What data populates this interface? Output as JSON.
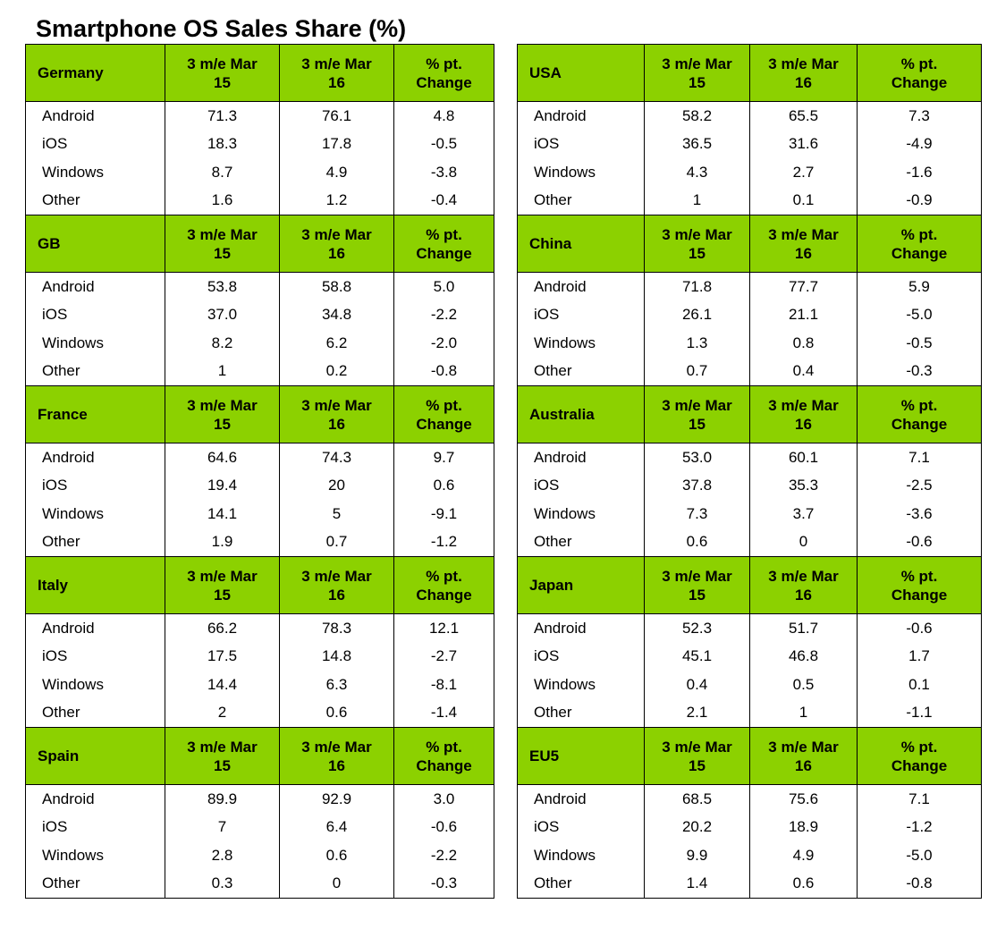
{
  "page": {
    "title": "Smartphone OS Sales Share (%)"
  },
  "chart_data": {
    "type": "table",
    "title": "Smartphone OS Sales Share (%)",
    "columns": [
      "3 m/e Mar 15",
      "3 m/e Mar 16",
      "% pt. Change"
    ],
    "header_lines": [
      [
        "3 m/e Mar",
        "15"
      ],
      [
        "3 m/e Mar",
        "16"
      ],
      [
        "% pt.",
        "Change"
      ]
    ],
    "left_column": [
      {
        "country": "Germany",
        "rows": [
          {
            "os": "Android",
            "values": [
              "71.3",
              "76.1",
              "4.8"
            ]
          },
          {
            "os": "iOS",
            "values": [
              "18.3",
              "17.8",
              "-0.5"
            ]
          },
          {
            "os": "Windows",
            "values": [
              "8.7",
              "4.9",
              "-3.8"
            ]
          },
          {
            "os": "Other",
            "values": [
              "1.6",
              "1.2",
              "-0.4"
            ]
          }
        ]
      },
      {
        "country": "GB",
        "rows": [
          {
            "os": "Android",
            "values": [
              "53.8",
              "58.8",
              "5.0"
            ]
          },
          {
            "os": "iOS",
            "values": [
              "37.0",
              "34.8",
              "-2.2"
            ]
          },
          {
            "os": "Windows",
            "values": [
              "8.2",
              "6.2",
              "-2.0"
            ]
          },
          {
            "os": "Other",
            "values": [
              "1",
              "0.2",
              "-0.8"
            ]
          }
        ]
      },
      {
        "country": "France",
        "rows": [
          {
            "os": "Android",
            "values": [
              "64.6",
              "74.3",
              "9.7"
            ]
          },
          {
            "os": "iOS",
            "values": [
              "19.4",
              "20",
              "0.6"
            ]
          },
          {
            "os": "Windows",
            "values": [
              "14.1",
              "5",
              "-9.1"
            ]
          },
          {
            "os": "Other",
            "values": [
              "1.9",
              "0.7",
              "-1.2"
            ]
          }
        ]
      },
      {
        "country": "Italy",
        "rows": [
          {
            "os": "Android",
            "values": [
              "66.2",
              "78.3",
              "12.1"
            ]
          },
          {
            "os": "iOS",
            "values": [
              "17.5",
              "14.8",
              "-2.7"
            ]
          },
          {
            "os": "Windows",
            "values": [
              "14.4",
              "6.3",
              "-8.1"
            ]
          },
          {
            "os": "Other",
            "values": [
              "2",
              "0.6",
              "-1.4"
            ]
          }
        ]
      },
      {
        "country": "Spain",
        "rows": [
          {
            "os": "Android",
            "values": [
              "89.9",
              "92.9",
              "3.0"
            ]
          },
          {
            "os": "iOS",
            "values": [
              "7",
              "6.4",
              "-0.6"
            ]
          },
          {
            "os": "Windows",
            "values": [
              "2.8",
              "0.6",
              "-2.2"
            ]
          },
          {
            "os": "Other",
            "values": [
              "0.3",
              "0",
              "-0.3"
            ]
          }
        ]
      }
    ],
    "right_column": [
      {
        "country": "USA",
        "rows": [
          {
            "os": "Android",
            "values": [
              "58.2",
              "65.5",
              "7.3"
            ]
          },
          {
            "os": "iOS",
            "values": [
              "36.5",
              "31.6",
              "-4.9"
            ]
          },
          {
            "os": "Windows",
            "values": [
              "4.3",
              "2.7",
              "-1.6"
            ]
          },
          {
            "os": "Other",
            "values": [
              "1",
              "0.1",
              "-0.9"
            ]
          }
        ]
      },
      {
        "country": "China",
        "rows": [
          {
            "os": "Android",
            "values": [
              "71.8",
              "77.7",
              "5.9"
            ]
          },
          {
            "os": "iOS",
            "values": [
              "26.1",
              "21.1",
              "-5.0"
            ]
          },
          {
            "os": "Windows",
            "values": [
              "1.3",
              "0.8",
              "-0.5"
            ]
          },
          {
            "os": "Other",
            "values": [
              "0.7",
              "0.4",
              "-0.3"
            ]
          }
        ]
      },
      {
        "country": "Australia",
        "rows": [
          {
            "os": "Android",
            "values": [
              "53.0",
              "60.1",
              "7.1"
            ]
          },
          {
            "os": "iOS",
            "values": [
              "37.8",
              "35.3",
              "-2.5"
            ]
          },
          {
            "os": "Windows",
            "values": [
              "7.3",
              "3.7",
              "-3.6"
            ]
          },
          {
            "os": "Other",
            "values": [
              "0.6",
              "0",
              "-0.6"
            ]
          }
        ]
      },
      {
        "country": "Japan",
        "rows": [
          {
            "os": "Android",
            "values": [
              "52.3",
              "51.7",
              "-0.6"
            ]
          },
          {
            "os": "iOS",
            "values": [
              "45.1",
              "46.8",
              "1.7"
            ]
          },
          {
            "os": "Windows",
            "values": [
              "0.4",
              "0.5",
              "0.1"
            ]
          },
          {
            "os": "Other",
            "values": [
              "2.1",
              "1",
              "-1.1"
            ]
          }
        ]
      },
      {
        "country": "EU5",
        "rows": [
          {
            "os": "Android",
            "values": [
              "68.5",
              "75.6",
              "7.1"
            ]
          },
          {
            "os": "iOS",
            "values": [
              "20.2",
              "18.9",
              "-1.2"
            ]
          },
          {
            "os": "Windows",
            "values": [
              "9.9",
              "4.9",
              "-5.0"
            ]
          },
          {
            "os": "Other",
            "values": [
              "1.4",
              "0.6",
              "-0.8"
            ]
          }
        ]
      }
    ]
  },
  "colors": {
    "header_fill": "#8cd100",
    "border": "#000000",
    "background": "#ffffff"
  }
}
